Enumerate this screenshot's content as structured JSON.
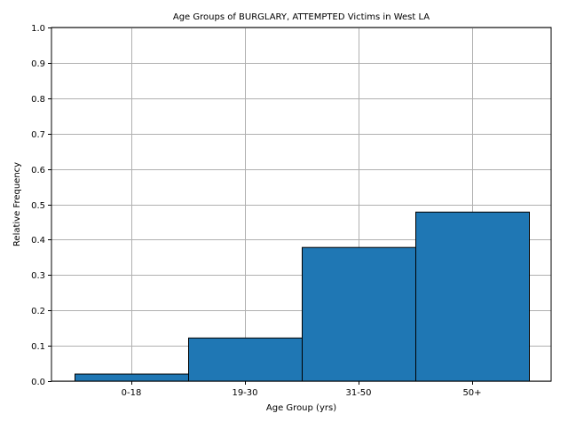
{
  "chart_data": {
    "type": "bar",
    "title": "Age Groups of BURGLARY, ATTEMPTED Victims in West LA",
    "xlabel": "Age Group (yrs)",
    "ylabel": "Relative Frequency",
    "categories": [
      "0-18",
      "19-30",
      "31-50",
      "50+"
    ],
    "values": [
      0.02,
      0.122,
      0.378,
      0.478
    ],
    "ylim": [
      0,
      1.0
    ],
    "yticks": [
      "0.0",
      "0.1",
      "0.2",
      "0.3",
      "0.4",
      "0.5",
      "0.6",
      "0.7",
      "0.8",
      "0.9",
      "1.0"
    ],
    "grid": true,
    "bar_color": "#1f77b4",
    "bar_edge_color": "#000000",
    "grid_color": "#b0b0b0"
  }
}
